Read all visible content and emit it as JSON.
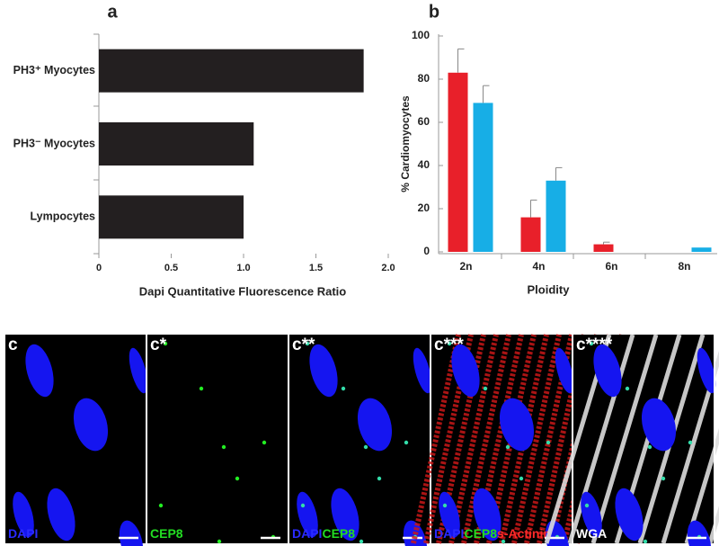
{
  "chart_data": [
    {
      "type": "hbar",
      "panel": "a",
      "categories": [
        "PH3⁺ Myocytes",
        "PH3⁻ Myocytes",
        "Lympocytes"
      ],
      "values": [
        1.83,
        1.07,
        1.0
      ],
      "color": "#231f20",
      "xlim": [
        0,
        2
      ],
      "xticks": [
        0,
        0.5,
        {
          "value": 1,
          "label": "1.0"
        },
        1.5,
        {
          "value": 2,
          "label": "2.0"
        }
      ],
      "xlabel": "Dapi Quantitative Fluorescence Ratio"
    },
    {
      "type": "groupbar",
      "panel": "b",
      "categories": [
        "2n",
        "4n",
        "6n",
        "8n"
      ],
      "series": [
        {
          "color": "#e8202a",
          "values": [
            83,
            16,
            3.5,
            null
          ],
          "errors": [
            11,
            8,
            1,
            null
          ]
        },
        {
          "color": "#17aee6",
          "values": [
            69,
            33,
            null,
            2
          ],
          "errors": [
            8,
            6,
            null,
            null
          ]
        }
      ],
      "ylim": [
        0,
        100
      ],
      "yticks": [
        0,
        20,
        40,
        60,
        80,
        100
      ],
      "xlabel": "Ploidity",
      "ylabel": "% Cardiomyocytes"
    }
  ],
  "panels": [
    {
      "label": "c",
      "stains": [
        {
          "text": "DAPI",
          "color": "#2a2aff"
        }
      ]
    },
    {
      "label": "c*",
      "stains": [
        {
          "text": "CEP8",
          "color": "#22dd22"
        }
      ]
    },
    {
      "label": "c**",
      "stains": [
        {
          "text": "DAPI",
          "color": "#2a2aff"
        },
        {
          "text": "CEP8",
          "color": "#22dd22"
        }
      ]
    },
    {
      "label": "c***",
      "stains": [
        {
          "text": "DAPI",
          "color": "#2a2aff"
        },
        {
          "text": "CEP8",
          "color": "#22dd22"
        },
        {
          "text": "s-Actinin",
          "color": "#ff2a2a"
        }
      ]
    },
    {
      "label": "c****",
      "stains": [
        {
          "text": "WGA",
          "color": "#ffffff"
        }
      ]
    }
  ]
}
